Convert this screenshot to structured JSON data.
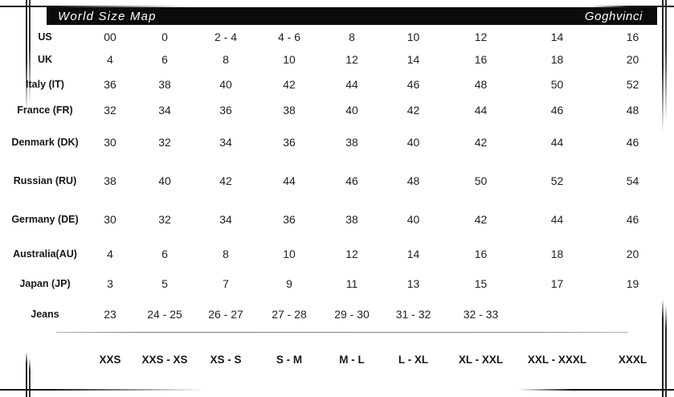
{
  "header": {
    "title": "World Size Map",
    "brand": "Goghvinci"
  },
  "table": {
    "rows": [
      {
        "label": "US",
        "values": [
          "00",
          "0",
          "2 - 4",
          "4 - 6",
          "8",
          "10",
          "12",
          "14",
          "16"
        ]
      },
      {
        "label": "UK",
        "values": [
          "4",
          "6",
          "8",
          "10",
          "12",
          "14",
          "16",
          "18",
          "20"
        ]
      },
      {
        "label": "Italy (IT)",
        "values": [
          "36",
          "38",
          "40",
          "42",
          "44",
          "46",
          "48",
          "50",
          "52"
        ]
      },
      {
        "label": "France (FR)",
        "values": [
          "32",
          "34",
          "36",
          "38",
          "40",
          "42",
          "44",
          "46",
          "48"
        ]
      },
      {
        "label": "Denmark (DK)",
        "values": [
          "30",
          "32",
          "34",
          "36",
          "38",
          "40",
          "42",
          "44",
          "46"
        ]
      },
      {
        "label": "Russian (RU)",
        "values": [
          "38",
          "40",
          "42",
          "44",
          "46",
          "48",
          "50",
          "52",
          "54"
        ]
      },
      {
        "label": "Germany (DE)",
        "values": [
          "30",
          "32",
          "34",
          "36",
          "38",
          "40",
          "42",
          "44",
          "46"
        ]
      },
      {
        "label": "Australia(AU)",
        "values": [
          "4",
          "6",
          "8",
          "10",
          "12",
          "14",
          "16",
          "18",
          "20"
        ]
      },
      {
        "label": "Japan (JP)",
        "values": [
          "3",
          "5",
          "7",
          "9",
          "11",
          "13",
          "15",
          "17",
          "19"
        ]
      },
      {
        "label": "Jeans",
        "values": [
          "23",
          "24 - 25",
          "26 - 27",
          "27 - 28",
          "29 - 30",
          "31 - 32",
          "32 - 33",
          "",
          ""
        ]
      }
    ],
    "size_row": [
      "XXS",
      "XXS - XS",
      "XS - S",
      "S - M",
      "M - L",
      "L - XL",
      "XL - XXL",
      "XXL - XXXL",
      "XXXL"
    ]
  },
  "colors": {
    "header_bg": "#0b0b0b",
    "header_text": "#ffffff",
    "body_text": "#222222",
    "background": "#ffffff"
  }
}
